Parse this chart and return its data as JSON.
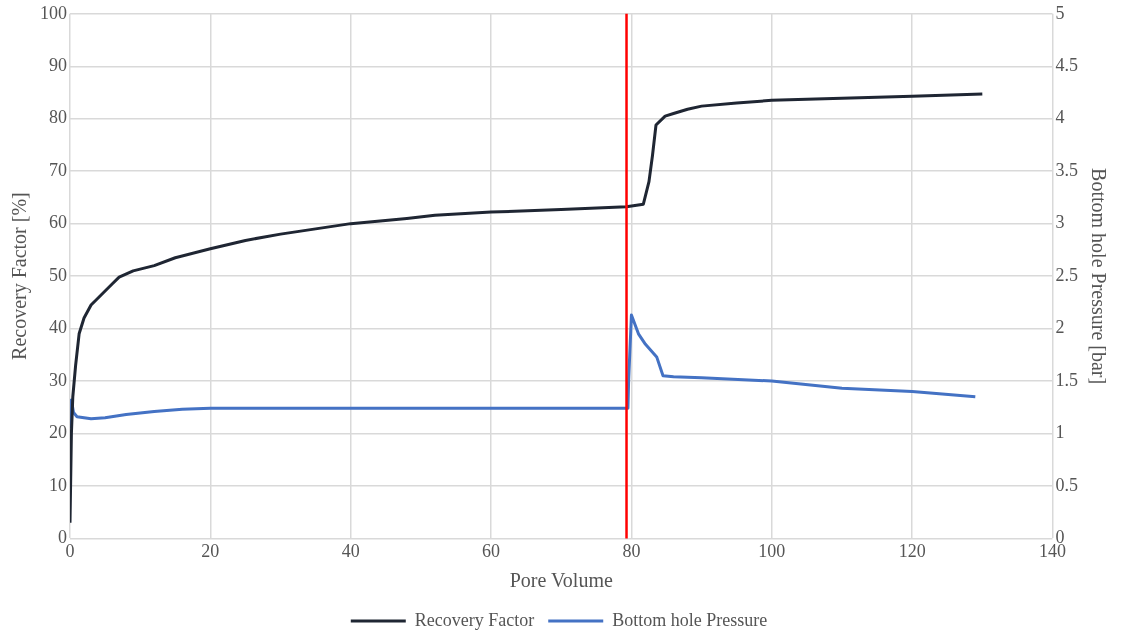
{
  "chart_data": {
    "type": "line",
    "xlabel": "Pore Volume",
    "ylabel": "Recovery Factor [%]",
    "y2label": "Bottom hole Pressure [bar]",
    "xlim": [
      0,
      140
    ],
    "xticks": [
      0,
      20,
      40,
      60,
      80,
      100,
      120,
      140
    ],
    "ylim": [
      0,
      100
    ],
    "yticks": [
      0,
      10,
      20,
      30,
      40,
      50,
      60,
      70,
      80,
      90,
      100
    ],
    "y2lim": [
      0,
      5
    ],
    "y2ticks": [
      0,
      0.5,
      1,
      1.5,
      2,
      2.5,
      3,
      3.5,
      4,
      4.5,
      5
    ],
    "grid": true,
    "legend": "bottom",
    "marker": "none",
    "ref_lines": [
      {
        "axis": "x",
        "value": 79.3,
        "color": "#ff0000"
      }
    ],
    "series": [
      {
        "name": "Recovery Factor",
        "color": "#1f2633",
        "x": [
          0,
          0.2,
          0.4,
          0.8,
          1.3,
          2,
          3,
          4.5,
          6,
          7,
          9,
          12,
          15,
          20,
          25,
          30,
          35,
          40,
          48,
          52,
          60,
          70,
          79.3,
          81.7,
          82.5,
          83,
          83.5,
          84.8,
          86,
          88,
          90,
          95,
          100,
          110,
          120,
          130
        ],
        "values": [
          3,
          20,
          27,
          33,
          39,
          42,
          44.5,
          46.5,
          48.5,
          49.8,
          51,
          52,
          53.5,
          55.2,
          56.8,
          58,
          59,
          60,
          61,
          61.6,
          62.2,
          62.7,
          63.2,
          63.7,
          68,
          73,
          78.8,
          80.5,
          81,
          81.8,
          82.4,
          83,
          83.5,
          83.9,
          84.3,
          84.7
        ]
      },
      {
        "name": "Bottom hole Pressure",
        "color": "#4472c4",
        "axis": "y2",
        "x": [
          0,
          0.2,
          0.5,
          1,
          2,
          3,
          5,
          8,
          12,
          16,
          20,
          30,
          50,
          79.5,
          79.6,
          80,
          81,
          82,
          83.6,
          84.5,
          86,
          90,
          100,
          110,
          120,
          129
        ],
        "values": [
          1.05,
          1.32,
          1.2,
          1.16,
          1.15,
          1.14,
          1.15,
          1.18,
          1.21,
          1.23,
          1.24,
          1.24,
          1.24,
          1.24,
          1.5,
          2.13,
          1.95,
          1.85,
          1.73,
          1.55,
          1.54,
          1.53,
          1.5,
          1.43,
          1.4,
          1.35
        ]
      }
    ]
  }
}
